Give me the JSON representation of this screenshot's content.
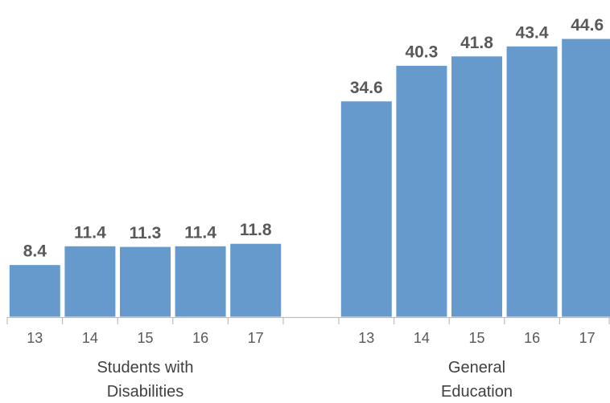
{
  "chart_data": {
    "type": "bar",
    "grid": false,
    "legend": "none",
    "ylim": [
      0,
      48
    ],
    "groups": [
      {
        "label_lines": [
          "Students with",
          "Disabilities"
        ],
        "categories": [
          "13",
          "14",
          "15",
          "16",
          "17"
        ],
        "values": [
          8.4,
          11.4,
          11.3,
          11.4,
          11.8
        ]
      },
      {
        "label_lines": [
          "General",
          "Education"
        ],
        "categories": [
          "13",
          "14",
          "15",
          "16",
          "17"
        ],
        "values": [
          34.6,
          40.3,
          41.8,
          43.4,
          44.6
        ]
      }
    ],
    "colors": {
      "bar": "#6699CC",
      "label": "#595959",
      "axis": "#BFBFBF"
    }
  }
}
